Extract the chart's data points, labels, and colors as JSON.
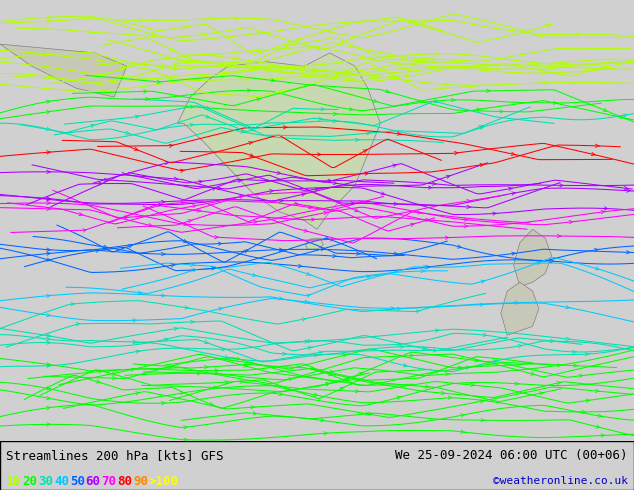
{
  "title_left": "Streamlines 200 hPa [kts] GFS",
  "title_right": "We 25-09-2024 06:00 UTC (00+06)",
  "credit": "©weatheronline.co.uk",
  "background_color": "#e8e8e8",
  "legend_labels": [
    "10",
    "20",
    "30",
    "40",
    "50",
    "60",
    "70",
    "80",
    "90",
    ">100"
  ],
  "legend_colors": [
    "#b0ff00",
    "#00ff00",
    "#00e0b0",
    "#00c8ff",
    "#0064ff",
    "#aa00ff",
    "#ff00ff",
    "#ff0000",
    "#ff8800",
    "#ffff00"
  ],
  "title_fontsize": 9,
  "credit_fontsize": 8,
  "legend_fontsize": 9,
  "fig_width": 6.34,
  "fig_height": 4.9,
  "dpi": 100
}
